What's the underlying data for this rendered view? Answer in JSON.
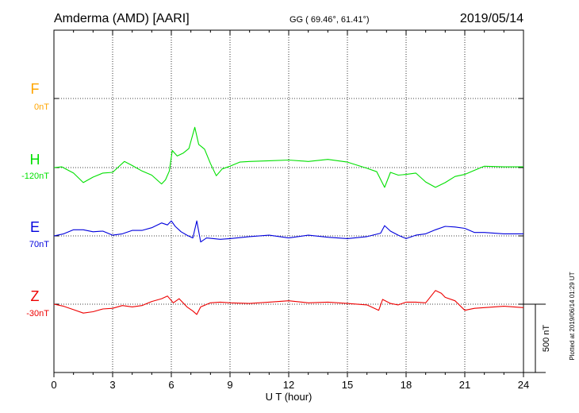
{
  "header": {
    "station": "Amderma (AMD)  [AARI]",
    "coords": "GG ( 69.46°,  61.41°)",
    "date": "2019/05/14"
  },
  "side_note": "Plotted at 2019/06/14 01:29 UT",
  "scale_bar_label": "500 nT",
  "colors": {
    "F": "#ffa500",
    "H": "#00e000",
    "E": "#0000dd",
    "Z": "#ee0000"
  },
  "chart_data": {
    "type": "line",
    "xlabel": "U T (hour)",
    "xlim": [
      0,
      24
    ],
    "x_ticks": [
      0,
      3,
      6,
      9,
      12,
      15,
      18,
      21,
      24
    ],
    "grid": true,
    "scale_nT": 500,
    "series": [
      {
        "name": "F",
        "offset_label": "0nT",
        "points": []
      },
      {
        "name": "H",
        "offset_label": "-120nT",
        "points": [
          [
            0,
            0
          ],
          [
            0.4,
            5
          ],
          [
            1.0,
            -40
          ],
          [
            1.5,
            -110
          ],
          [
            2.0,
            -70
          ],
          [
            2.5,
            -40
          ],
          [
            3.0,
            -35
          ],
          [
            3.3,
            5
          ],
          [
            3.6,
            45
          ],
          [
            4.0,
            15
          ],
          [
            4.5,
            -25
          ],
          [
            5.0,
            -55
          ],
          [
            5.5,
            -120
          ],
          [
            5.7,
            -90
          ],
          [
            5.9,
            -25
          ],
          [
            6.05,
            125
          ],
          [
            6.3,
            85
          ],
          [
            6.6,
            105
          ],
          [
            6.9,
            140
          ],
          [
            7.2,
            295
          ],
          [
            7.4,
            170
          ],
          [
            7.7,
            135
          ],
          [
            8.0,
            30
          ],
          [
            8.3,
            -60
          ],
          [
            8.6,
            -10
          ],
          [
            9.0,
            10
          ],
          [
            9.5,
            40
          ],
          [
            10,
            45
          ],
          [
            11,
            50
          ],
          [
            12,
            55
          ],
          [
            13,
            45
          ],
          [
            14,
            60
          ],
          [
            15,
            40
          ],
          [
            16,
            -5
          ],
          [
            16.5,
            -30
          ],
          [
            16.9,
            -145
          ],
          [
            17.2,
            -35
          ],
          [
            17.6,
            -55
          ],
          [
            18,
            -50
          ],
          [
            18.5,
            -40
          ],
          [
            19,
            -105
          ],
          [
            19.5,
            -145
          ],
          [
            20,
            -110
          ],
          [
            20.5,
            -65
          ],
          [
            21,
            -50
          ],
          [
            21.5,
            -20
          ],
          [
            22,
            10
          ],
          [
            23,
            5
          ],
          [
            24,
            5
          ]
        ]
      },
      {
        "name": "E",
        "offset_label": "70nT",
        "points": [
          [
            0,
            0
          ],
          [
            0.5,
            15
          ],
          [
            1,
            45
          ],
          [
            1.5,
            45
          ],
          [
            2,
            30
          ],
          [
            2.5,
            35
          ],
          [
            3,
            5
          ],
          [
            3.5,
            15
          ],
          [
            4,
            40
          ],
          [
            4.5,
            40
          ],
          [
            5,
            60
          ],
          [
            5.5,
            95
          ],
          [
            5.8,
            80
          ],
          [
            6.0,
            110
          ],
          [
            6.2,
            70
          ],
          [
            6.5,
            30
          ],
          [
            6.8,
            5
          ],
          [
            7.1,
            -15
          ],
          [
            7.3,
            110
          ],
          [
            7.5,
            -45
          ],
          [
            7.8,
            -15
          ],
          [
            8.5,
            -25
          ],
          [
            9,
            -20
          ],
          [
            10,
            -5
          ],
          [
            11,
            5
          ],
          [
            12,
            -15
          ],
          [
            13,
            5
          ],
          [
            14,
            -10
          ],
          [
            15,
            -20
          ],
          [
            16,
            -5
          ],
          [
            16.7,
            20
          ],
          [
            16.9,
            75
          ],
          [
            17.2,
            35
          ],
          [
            17.6,
            5
          ],
          [
            18,
            -20
          ],
          [
            18.5,
            5
          ],
          [
            19,
            15
          ],
          [
            19.5,
            45
          ],
          [
            20,
            70
          ],
          [
            20.5,
            65
          ],
          [
            21,
            55
          ],
          [
            21.5,
            25
          ],
          [
            22,
            25
          ],
          [
            23,
            15
          ],
          [
            24,
            15
          ]
        ]
      },
      {
        "name": "Z",
        "offset_label": "-30nT",
        "points": [
          [
            0,
            0
          ],
          [
            0.5,
            -15
          ],
          [
            1,
            -40
          ],
          [
            1.5,
            -65
          ],
          [
            2,
            -55
          ],
          [
            2.5,
            -35
          ],
          [
            3,
            -30
          ],
          [
            3.5,
            -10
          ],
          [
            4,
            -20
          ],
          [
            4.5,
            -10
          ],
          [
            5,
            20
          ],
          [
            5.5,
            40
          ],
          [
            5.8,
            60
          ],
          [
            6.1,
            10
          ],
          [
            6.4,
            40
          ],
          [
            6.8,
            -20
          ],
          [
            7.1,
            -50
          ],
          [
            7.3,
            -75
          ],
          [
            7.5,
            -20
          ],
          [
            8,
            10
          ],
          [
            8.5,
            15
          ],
          [
            9,
            10
          ],
          [
            10,
            5
          ],
          [
            11,
            15
          ],
          [
            12,
            25
          ],
          [
            13,
            10
          ],
          [
            14,
            15
          ],
          [
            15,
            5
          ],
          [
            16,
            -5
          ],
          [
            16.6,
            -45
          ],
          [
            16.8,
            35
          ],
          [
            17.2,
            5
          ],
          [
            17.6,
            -5
          ],
          [
            18,
            15
          ],
          [
            18.5,
            15
          ],
          [
            19,
            10
          ],
          [
            19.5,
            100
          ],
          [
            19.8,
            80
          ],
          [
            20,
            50
          ],
          [
            20.5,
            25
          ],
          [
            21,
            -45
          ],
          [
            21.5,
            -30
          ],
          [
            22,
            -25
          ],
          [
            23,
            -15
          ],
          [
            24,
            -25
          ]
        ]
      }
    ]
  }
}
